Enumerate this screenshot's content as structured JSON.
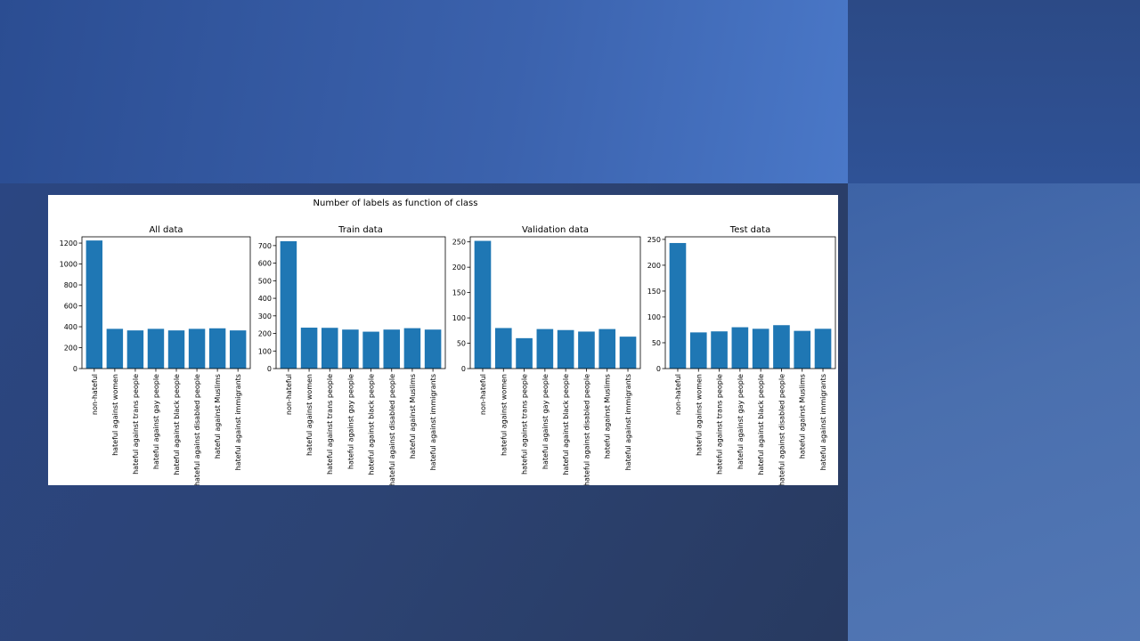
{
  "figure": {
    "suptitle": "Number of labels as function of class"
  },
  "chart_data": [
    {
      "type": "bar",
      "title": "All data",
      "categories": [
        "non-hateful",
        "hateful against women",
        "hateful against trans people",
        "hateful against gay people",
        "hateful against black people",
        "hateful against disabled people",
        "hateful against Muslims",
        "hateful against immigrants"
      ],
      "values": [
        1225,
        380,
        365,
        380,
        365,
        380,
        385,
        365
      ],
      "ylim": [
        0,
        1260
      ],
      "yticks": [
        0,
        200,
        400,
        600,
        800,
        1000,
        1200
      ],
      "color": "#1f77b4"
    },
    {
      "type": "bar",
      "title": "Train data",
      "categories": [
        "non-hateful",
        "hateful against women",
        "hateful against trans people",
        "hateful against gay people",
        "hateful against black people",
        "hateful against disabled people",
        "hateful against Muslims",
        "hateful against immigrants"
      ],
      "values": [
        725,
        233,
        232,
        222,
        210,
        222,
        230,
        222
      ],
      "ylim": [
        0,
        750
      ],
      "yticks": [
        0,
        100,
        200,
        300,
        400,
        500,
        600,
        700
      ],
      "color": "#1f77b4"
    },
    {
      "type": "bar",
      "title": "Validation data",
      "categories": [
        "non-hateful",
        "hateful against women",
        "hateful against trans people",
        "hateful against gay people",
        "hateful against black people",
        "hateful against disabled people",
        "hateful against Muslims",
        "hateful against immigrants"
      ],
      "values": [
        252,
        80,
        60,
        78,
        76,
        73,
        78,
        63
      ],
      "ylim": [
        0,
        260
      ],
      "yticks": [
        0,
        50,
        100,
        150,
        200,
        250
      ],
      "color": "#1f77b4"
    },
    {
      "type": "bar",
      "title": "Test data",
      "categories": [
        "non-hateful",
        "hateful against women",
        "hateful against trans people",
        "hateful against gay people",
        "hateful against black people",
        "hateful against disabled people",
        "hateful against Muslims",
        "hateful against immigrants"
      ],
      "values": [
        243,
        70,
        72,
        80,
        77,
        84,
        73,
        77
      ],
      "ylim": [
        0,
        255
      ],
      "yticks": [
        0,
        50,
        100,
        150,
        200,
        250
      ],
      "color": "#1f77b4"
    }
  ]
}
